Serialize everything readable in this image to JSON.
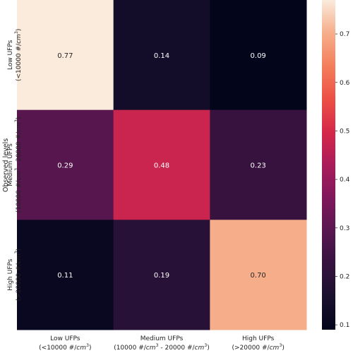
{
  "chart_data": {
    "type": "heatmap",
    "ylabel": "Observed levels",
    "xlabel": "",
    "columns": [
      {
        "line1": "Low UFPs",
        "line2": "(<10000 #/cm³)"
      },
      {
        "line1": "Medium UFPs",
        "line2": "(10000 #/cm³ - 20000 #/cm³)"
      },
      {
        "line1": "High UFPs",
        "line2": "(>20000 #/cm³)"
      }
    ],
    "rows": [
      {
        "line1": "Low UFPs",
        "line2": "(<10000 #/cm³)"
      },
      {
        "line1": "Medium UFPs",
        "line2": "(10000 #/cm³ - 20000 #/cm³)"
      },
      {
        "line1": "High UFPs",
        "line2": "(>20000 #/cm³)"
      }
    ],
    "values": [
      [
        0.77,
        0.14,
        0.09
      ],
      [
        0.29,
        0.48,
        0.23
      ],
      [
        0.11,
        0.19,
        0.7
      ]
    ],
    "cell_labels": [
      [
        "0.77",
        "0.14",
        "0.09"
      ],
      [
        "0.29",
        "0.48",
        "0.23"
      ],
      [
        "0.11",
        "0.19",
        "0.70"
      ]
    ],
    "colorbar": {
      "range": [
        0.09,
        0.77
      ],
      "ticks": [
        0.1,
        0.2,
        0.3,
        0.4,
        0.5,
        0.6,
        0.7
      ],
      "tick_labels": [
        "0.1",
        "0.2",
        "0.3",
        "0.4",
        "0.5",
        "0.6",
        "0.7"
      ],
      "colormap": "rocket"
    }
  }
}
